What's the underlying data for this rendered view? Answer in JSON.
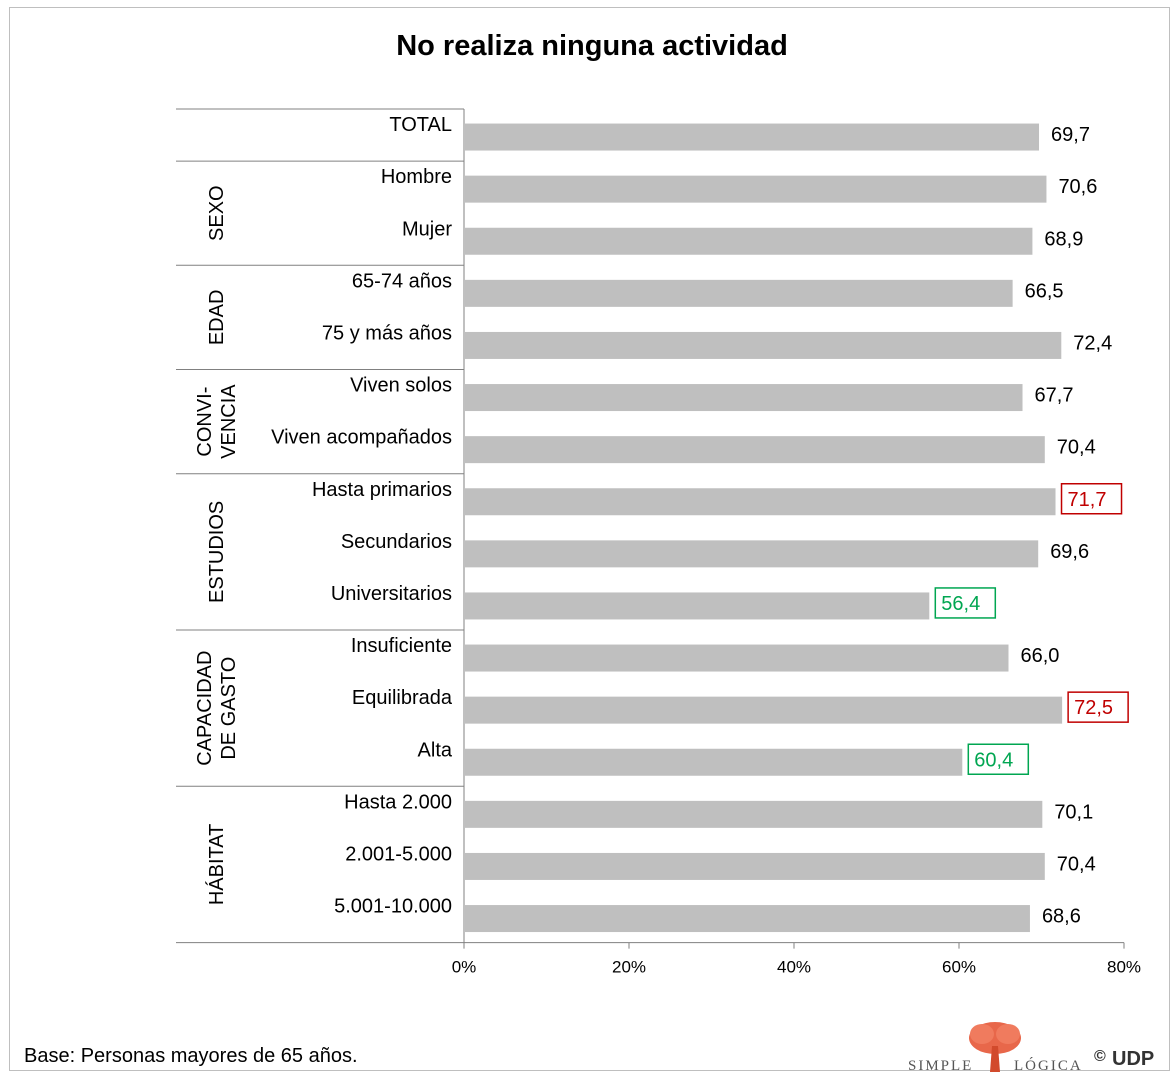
{
  "chart_data": {
    "type": "bar",
    "orientation": "horizontal",
    "title": "No realiza ninguna actividad",
    "categories": [
      "TOTAL",
      "Hombre",
      "Mujer",
      "65-74 años",
      "75 y más años",
      "Viven solos",
      "Viven acompañados",
      "Hasta primarios",
      "Secundarios",
      "Universitarios",
      "Insuficiente",
      "Equilibrada",
      "Alta",
      "Hasta 2.000",
      "2.001-5.000",
      "5.001-10.000"
    ],
    "values": [
      69.7,
      70.6,
      68.9,
      66.5,
      72.4,
      67.7,
      70.4,
      71.7,
      69.6,
      56.4,
      66.0,
      72.5,
      60.4,
      70.1,
      70.4,
      68.6
    ],
    "value_labels": [
      "69,7",
      "70,6",
      "68,9",
      "66,5",
      "72,4",
      "67,7",
      "70,4",
      "71,7",
      "69,6",
      "56,4",
      "66,0",
      "72,5",
      "60,4",
      "70,1",
      "70,4",
      "68,6"
    ],
    "highlight": [
      "none",
      "none",
      "none",
      "none",
      "none",
      "none",
      "none",
      "high",
      "none",
      "low",
      "none",
      "high",
      "low",
      "none",
      "none",
      "none"
    ],
    "groups": [
      {
        "lines": [
          ""
        ],
        "start": 0,
        "end": 0
      },
      {
        "lines": [
          "SEXO"
        ],
        "start": 1,
        "end": 2
      },
      {
        "lines": [
          "EDAD"
        ],
        "start": 3,
        "end": 4
      },
      {
        "lines": [
          "CONVI-",
          "VENCIA"
        ],
        "start": 5,
        "end": 6
      },
      {
        "lines": [
          "ESTUDIOS"
        ],
        "start": 7,
        "end": 9
      },
      {
        "lines": [
          "CAPACIDAD",
          "DE GASTO"
        ],
        "start": 10,
        "end": 12
      },
      {
        "lines": [
          "HÁBITAT"
        ],
        "start": 13,
        "end": 15
      }
    ],
    "x_ticks": [
      "0%",
      "20%",
      "40%",
      "60%",
      "80%"
    ],
    "xlim": [
      0,
      80
    ],
    "grid": false,
    "legend": "none"
  },
  "colors": {
    "bar": "#bfbfbf",
    "high": "#c00000",
    "low": "#00a651",
    "axis": "#808080",
    "text": "#000000"
  },
  "footnote": "Base: Personas mayores de 65 años.",
  "logo": {
    "left_word": "SIMPLE",
    "right_word": "LÓGICA",
    "copyright": "©",
    "owner": "UDP"
  }
}
